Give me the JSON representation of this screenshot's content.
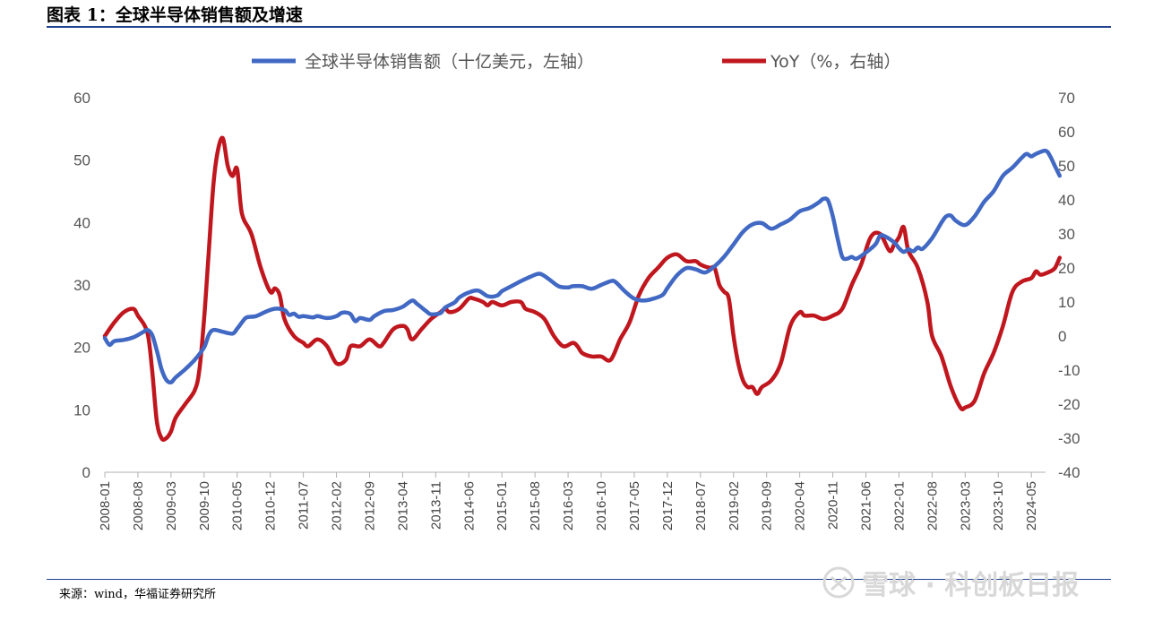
{
  "figure": {
    "title": "图表 1：全球半导体销售额及增速",
    "source": "来源：wind，华福证券研究所",
    "watermark": "雪球 · 科创板日报"
  },
  "chart_data": {
    "type": "line",
    "title": "",
    "legend_position": "top",
    "grid": false,
    "x_tick_labels": [
      "2008-01",
      "2008-08",
      "2009-03",
      "2009-10",
      "2010-05",
      "2010-12",
      "2011-07",
      "2012-02",
      "2012-09",
      "2013-04",
      "2013-11",
      "2014-06",
      "2015-01",
      "2015-08",
      "2016-03",
      "2016-10",
      "2017-05",
      "2017-12",
      "2018-07",
      "2019-02",
      "2019-09",
      "2020-04",
      "2020-11",
      "2021-06",
      "2022-01",
      "2022-08",
      "2023-03",
      "2023-10",
      "2024-05"
    ],
    "x_range": [
      "2008-01",
      "2024-08"
    ],
    "y_left": {
      "ylim": [
        0,
        60
      ],
      "ticks": [
        "0",
        "10",
        "20",
        "30",
        "40",
        "50",
        "60"
      ]
    },
    "y_right": {
      "ylim": [
        -40,
        70
      ],
      "ticks": [
        "-40",
        "-30",
        "-20",
        "-10",
        "0",
        "10",
        "20",
        "30",
        "40",
        "50",
        "60",
        "70"
      ]
    },
    "colors": {
      "sales": "#4169c4",
      "yoy": "#c0161e",
      "axis": "#b0b0b0"
    },
    "series": [
      {
        "name": "全球半导体销售额（十亿美元，左轴）",
        "axis": "left",
        "points": [
          [
            "2008-01",
            21.5
          ],
          [
            "2008-02",
            20.4
          ],
          [
            "2008-03",
            21.0
          ],
          [
            "2008-05",
            21.2
          ],
          [
            "2008-07",
            21.6
          ],
          [
            "2008-09",
            22.4
          ],
          [
            "2008-10",
            22.8
          ],
          [
            "2008-11",
            22.0
          ],
          [
            "2008-12",
            19.5
          ],
          [
            "2009-01",
            16.5
          ],
          [
            "2009-02",
            14.8
          ],
          [
            "2009-03",
            14.4
          ],
          [
            "2009-04",
            15.2
          ],
          [
            "2009-06",
            16.5
          ],
          [
            "2009-08",
            18.0
          ],
          [
            "2009-10",
            20.0
          ],
          [
            "2009-11",
            22.0
          ],
          [
            "2009-12",
            22.8
          ],
          [
            "2010-02",
            22.5
          ],
          [
            "2010-04",
            22.2
          ],
          [
            "2010-05",
            23.0
          ],
          [
            "2010-06",
            24.0
          ],
          [
            "2010-07",
            24.8
          ],
          [
            "2010-09",
            25.0
          ],
          [
            "2010-11",
            25.7
          ],
          [
            "2011-01",
            26.2
          ],
          [
            "2011-03",
            26.0
          ],
          [
            "2011-04",
            25.2
          ],
          [
            "2011-05",
            25.4
          ],
          [
            "2011-06",
            24.9
          ],
          [
            "2011-07",
            25.0
          ],
          [
            "2011-09",
            24.8
          ],
          [
            "2011-10",
            25.0
          ],
          [
            "2011-12",
            24.7
          ],
          [
            "2012-02",
            25.0
          ],
          [
            "2012-03",
            25.5
          ],
          [
            "2012-04",
            25.6
          ],
          [
            "2012-05",
            25.3
          ],
          [
            "2012-06",
            24.2
          ],
          [
            "2012-07",
            24.7
          ],
          [
            "2012-09",
            24.4
          ],
          [
            "2012-10",
            25.0
          ],
          [
            "2012-12",
            25.8
          ],
          [
            "2013-02",
            26.0
          ],
          [
            "2013-04",
            26.5
          ],
          [
            "2013-06",
            27.5
          ],
          [
            "2013-07",
            27.0
          ],
          [
            "2013-09",
            25.8
          ],
          [
            "2013-10",
            25.3
          ],
          [
            "2013-12",
            25.5
          ],
          [
            "2014-01",
            26.4
          ],
          [
            "2014-03",
            27.2
          ],
          [
            "2014-04",
            28.0
          ],
          [
            "2014-06",
            28.8
          ],
          [
            "2014-08",
            29.1
          ],
          [
            "2014-10",
            28.2
          ],
          [
            "2014-12",
            28.3
          ],
          [
            "2015-01",
            29.0
          ],
          [
            "2015-03",
            29.8
          ],
          [
            "2015-05",
            30.6
          ],
          [
            "2015-07",
            31.3
          ],
          [
            "2015-09",
            31.8
          ],
          [
            "2015-11",
            30.9
          ],
          [
            "2016-01",
            29.8
          ],
          [
            "2016-03",
            29.6
          ],
          [
            "2016-04",
            29.8
          ],
          [
            "2016-06",
            29.8
          ],
          [
            "2016-08",
            29.4
          ],
          [
            "2016-10",
            30.0
          ],
          [
            "2016-12",
            30.6
          ],
          [
            "2017-01",
            30.5
          ],
          [
            "2017-03",
            29.0
          ],
          [
            "2017-05",
            27.8
          ],
          [
            "2017-07",
            27.5
          ],
          [
            "2017-09",
            27.8
          ],
          [
            "2017-11",
            28.4
          ],
          [
            "2017-12",
            29.5
          ],
          [
            "2018-02",
            31.5
          ],
          [
            "2018-04",
            32.7
          ],
          [
            "2018-06",
            32.5
          ],
          [
            "2018-08",
            32.0
          ],
          [
            "2018-10",
            33.0
          ],
          [
            "2018-12",
            34.5
          ],
          [
            "2019-02",
            36.5
          ],
          [
            "2019-04",
            38.5
          ],
          [
            "2019-06",
            39.7
          ],
          [
            "2019-08",
            39.9
          ],
          [
            "2019-10",
            39.0
          ],
          [
            "2019-12",
            39.7
          ],
          [
            "2020-02",
            40.5
          ],
          [
            "2020-04",
            41.8
          ],
          [
            "2020-06",
            42.3
          ],
          [
            "2020-08",
            43.2
          ],
          [
            "2020-09",
            43.8
          ],
          [
            "2020-10",
            43.5
          ],
          [
            "2020-11",
            41.0
          ],
          [
            "2020-12",
            37.5
          ],
          [
            "2021-01",
            34.5
          ],
          [
            "2021-02",
            34.2
          ],
          [
            "2021-03",
            34.5
          ],
          [
            "2021-04",
            34.2
          ],
          [
            "2021-06",
            35.2
          ],
          [
            "2021-08",
            36.5
          ],
          [
            "2021-09",
            37.9
          ],
          [
            "2021-10",
            37.8
          ],
          [
            "2021-12",
            36.8
          ],
          [
            "2022-01",
            35.9
          ],
          [
            "2022-02",
            35.3
          ],
          [
            "2022-03",
            35.7
          ],
          [
            "2022-04",
            35.4
          ],
          [
            "2022-05",
            36.0
          ],
          [
            "2022-06",
            35.8
          ],
          [
            "2022-08",
            37.5
          ],
          [
            "2022-10",
            40.0
          ],
          [
            "2022-11",
            41.0
          ],
          [
            "2022-12",
            41.1
          ],
          [
            "2023-01",
            40.3
          ],
          [
            "2023-03",
            39.6
          ],
          [
            "2023-05",
            41.0
          ],
          [
            "2023-07",
            43.3
          ],
          [
            "2023-09",
            45.0
          ],
          [
            "2023-11",
            47.5
          ],
          [
            "2024-01",
            48.8
          ],
          [
            "2024-03",
            50.4
          ],
          [
            "2024-04",
            51.0
          ],
          [
            "2024-05",
            50.6
          ],
          [
            "2024-06",
            51.0
          ],
          [
            "2024-08",
            51.5
          ],
          [
            "2024-09",
            50.6
          ],
          [
            "2024-10",
            49.0
          ],
          [
            "2024-11",
            47.5
          ]
        ]
      },
      {
        "name": "YoY（%，右轴）",
        "axis": "right",
        "points": [
          [
            "2008-01",
            0
          ],
          [
            "2008-03",
            4
          ],
          [
            "2008-05",
            7
          ],
          [
            "2008-07",
            8
          ],
          [
            "2008-08",
            6
          ],
          [
            "2008-10",
            1
          ],
          [
            "2008-11",
            -10
          ],
          [
            "2008-12",
            -25
          ],
          [
            "2009-01",
            -30
          ],
          [
            "2009-02",
            -30
          ],
          [
            "2009-03",
            -28
          ],
          [
            "2009-04",
            -24
          ],
          [
            "2009-06",
            -20
          ],
          [
            "2009-08",
            -16
          ],
          [
            "2009-09",
            -10
          ],
          [
            "2009-10",
            5
          ],
          [
            "2009-11",
            25
          ],
          [
            "2009-12",
            45
          ],
          [
            "2010-01",
            55
          ],
          [
            "2010-02",
            58
          ],
          [
            "2010-03",
            50
          ],
          [
            "2010-04",
            47
          ],
          [
            "2010-05",
            49
          ],
          [
            "2010-06",
            36
          ],
          [
            "2010-08",
            30
          ],
          [
            "2010-10",
            20
          ],
          [
            "2010-12",
            13
          ],
          [
            "2011-01",
            14
          ],
          [
            "2011-02",
            12
          ],
          [
            "2011-03",
            5
          ],
          [
            "2011-05",
            0
          ],
          [
            "2011-07",
            -2
          ],
          [
            "2011-08",
            -3
          ],
          [
            "2011-10",
            -1
          ],
          [
            "2011-12",
            -3
          ],
          [
            "2012-02",
            -8
          ],
          [
            "2012-04",
            -7
          ],
          [
            "2012-05",
            -3
          ],
          [
            "2012-07",
            -3
          ],
          [
            "2012-09",
            -1
          ],
          [
            "2012-11",
            -3
          ],
          [
            "2012-12",
            -2
          ],
          [
            "2013-02",
            2
          ],
          [
            "2013-04",
            3
          ],
          [
            "2013-05",
            2
          ],
          [
            "2013-06",
            -1
          ],
          [
            "2013-08",
            2
          ],
          [
            "2013-10",
            5
          ],
          [
            "2013-12",
            7
          ],
          [
            "2014-01",
            8
          ],
          [
            "2014-02",
            7
          ],
          [
            "2014-04",
            8
          ],
          [
            "2014-06",
            11
          ],
          [
            "2014-07",
            11
          ],
          [
            "2014-09",
            10
          ],
          [
            "2014-10",
            9
          ],
          [
            "2014-11",
            10
          ],
          [
            "2015-01",
            9
          ],
          [
            "2015-03",
            10
          ],
          [
            "2015-05",
            10
          ],
          [
            "2015-06",
            8
          ],
          [
            "2015-08",
            7
          ],
          [
            "2015-10",
            5
          ],
          [
            "2015-12",
            0
          ],
          [
            "2016-02",
            -3
          ],
          [
            "2016-04",
            -2
          ],
          [
            "2016-05",
            -3
          ],
          [
            "2016-06",
            -5
          ],
          [
            "2016-08",
            -6
          ],
          [
            "2016-10",
            -6
          ],
          [
            "2016-12",
            -7
          ],
          [
            "2017-02",
            -1
          ],
          [
            "2017-04",
            4
          ],
          [
            "2017-06",
            12
          ],
          [
            "2017-08",
            17
          ],
          [
            "2017-10",
            20
          ],
          [
            "2017-12",
            23
          ],
          [
            "2018-02",
            24
          ],
          [
            "2018-04",
            22
          ],
          [
            "2018-06",
            22
          ],
          [
            "2018-07",
            21
          ],
          [
            "2018-09",
            20
          ],
          [
            "2018-10",
            20
          ],
          [
            "2018-11",
            15
          ],
          [
            "2018-12",
            13
          ],
          [
            "2019-01",
            11
          ],
          [
            "2019-02",
            0
          ],
          [
            "2019-03",
            -8
          ],
          [
            "2019-04",
            -13
          ],
          [
            "2019-05",
            -15
          ],
          [
            "2019-06",
            -15
          ],
          [
            "2019-07",
            -17
          ],
          [
            "2019-08",
            -15
          ],
          [
            "2019-10",
            -13
          ],
          [
            "2019-12",
            -8
          ],
          [
            "2020-02",
            3
          ],
          [
            "2020-04",
            7
          ],
          [
            "2020-05",
            6
          ],
          [
            "2020-07",
            6
          ],
          [
            "2020-09",
            5
          ],
          [
            "2020-11",
            6
          ],
          [
            "2021-01",
            8
          ],
          [
            "2021-03",
            15
          ],
          [
            "2021-05",
            21
          ],
          [
            "2021-07",
            29
          ],
          [
            "2021-09",
            30
          ],
          [
            "2021-11",
            25
          ],
          [
            "2021-12",
            27
          ],
          [
            "2022-01",
            29
          ],
          [
            "2022-02",
            32
          ],
          [
            "2022-03",
            25
          ],
          [
            "2022-05",
            20
          ],
          [
            "2022-07",
            10
          ],
          [
            "2022-08",
            0
          ],
          [
            "2022-10",
            -6
          ],
          [
            "2022-12",
            -15
          ],
          [
            "2023-02",
            -21
          ],
          [
            "2023-03",
            -21
          ],
          [
            "2023-05",
            -19
          ],
          [
            "2023-07",
            -11
          ],
          [
            "2023-09",
            -5
          ],
          [
            "2023-11",
            3
          ],
          [
            "2024-01",
            13
          ],
          [
            "2024-03",
            16
          ],
          [
            "2024-05",
            17
          ],
          [
            "2024-06",
            19
          ],
          [
            "2024-07",
            18
          ],
          [
            "2024-09",
            19
          ],
          [
            "2024-10",
            20
          ],
          [
            "2024-11",
            23
          ]
        ]
      }
    ]
  }
}
